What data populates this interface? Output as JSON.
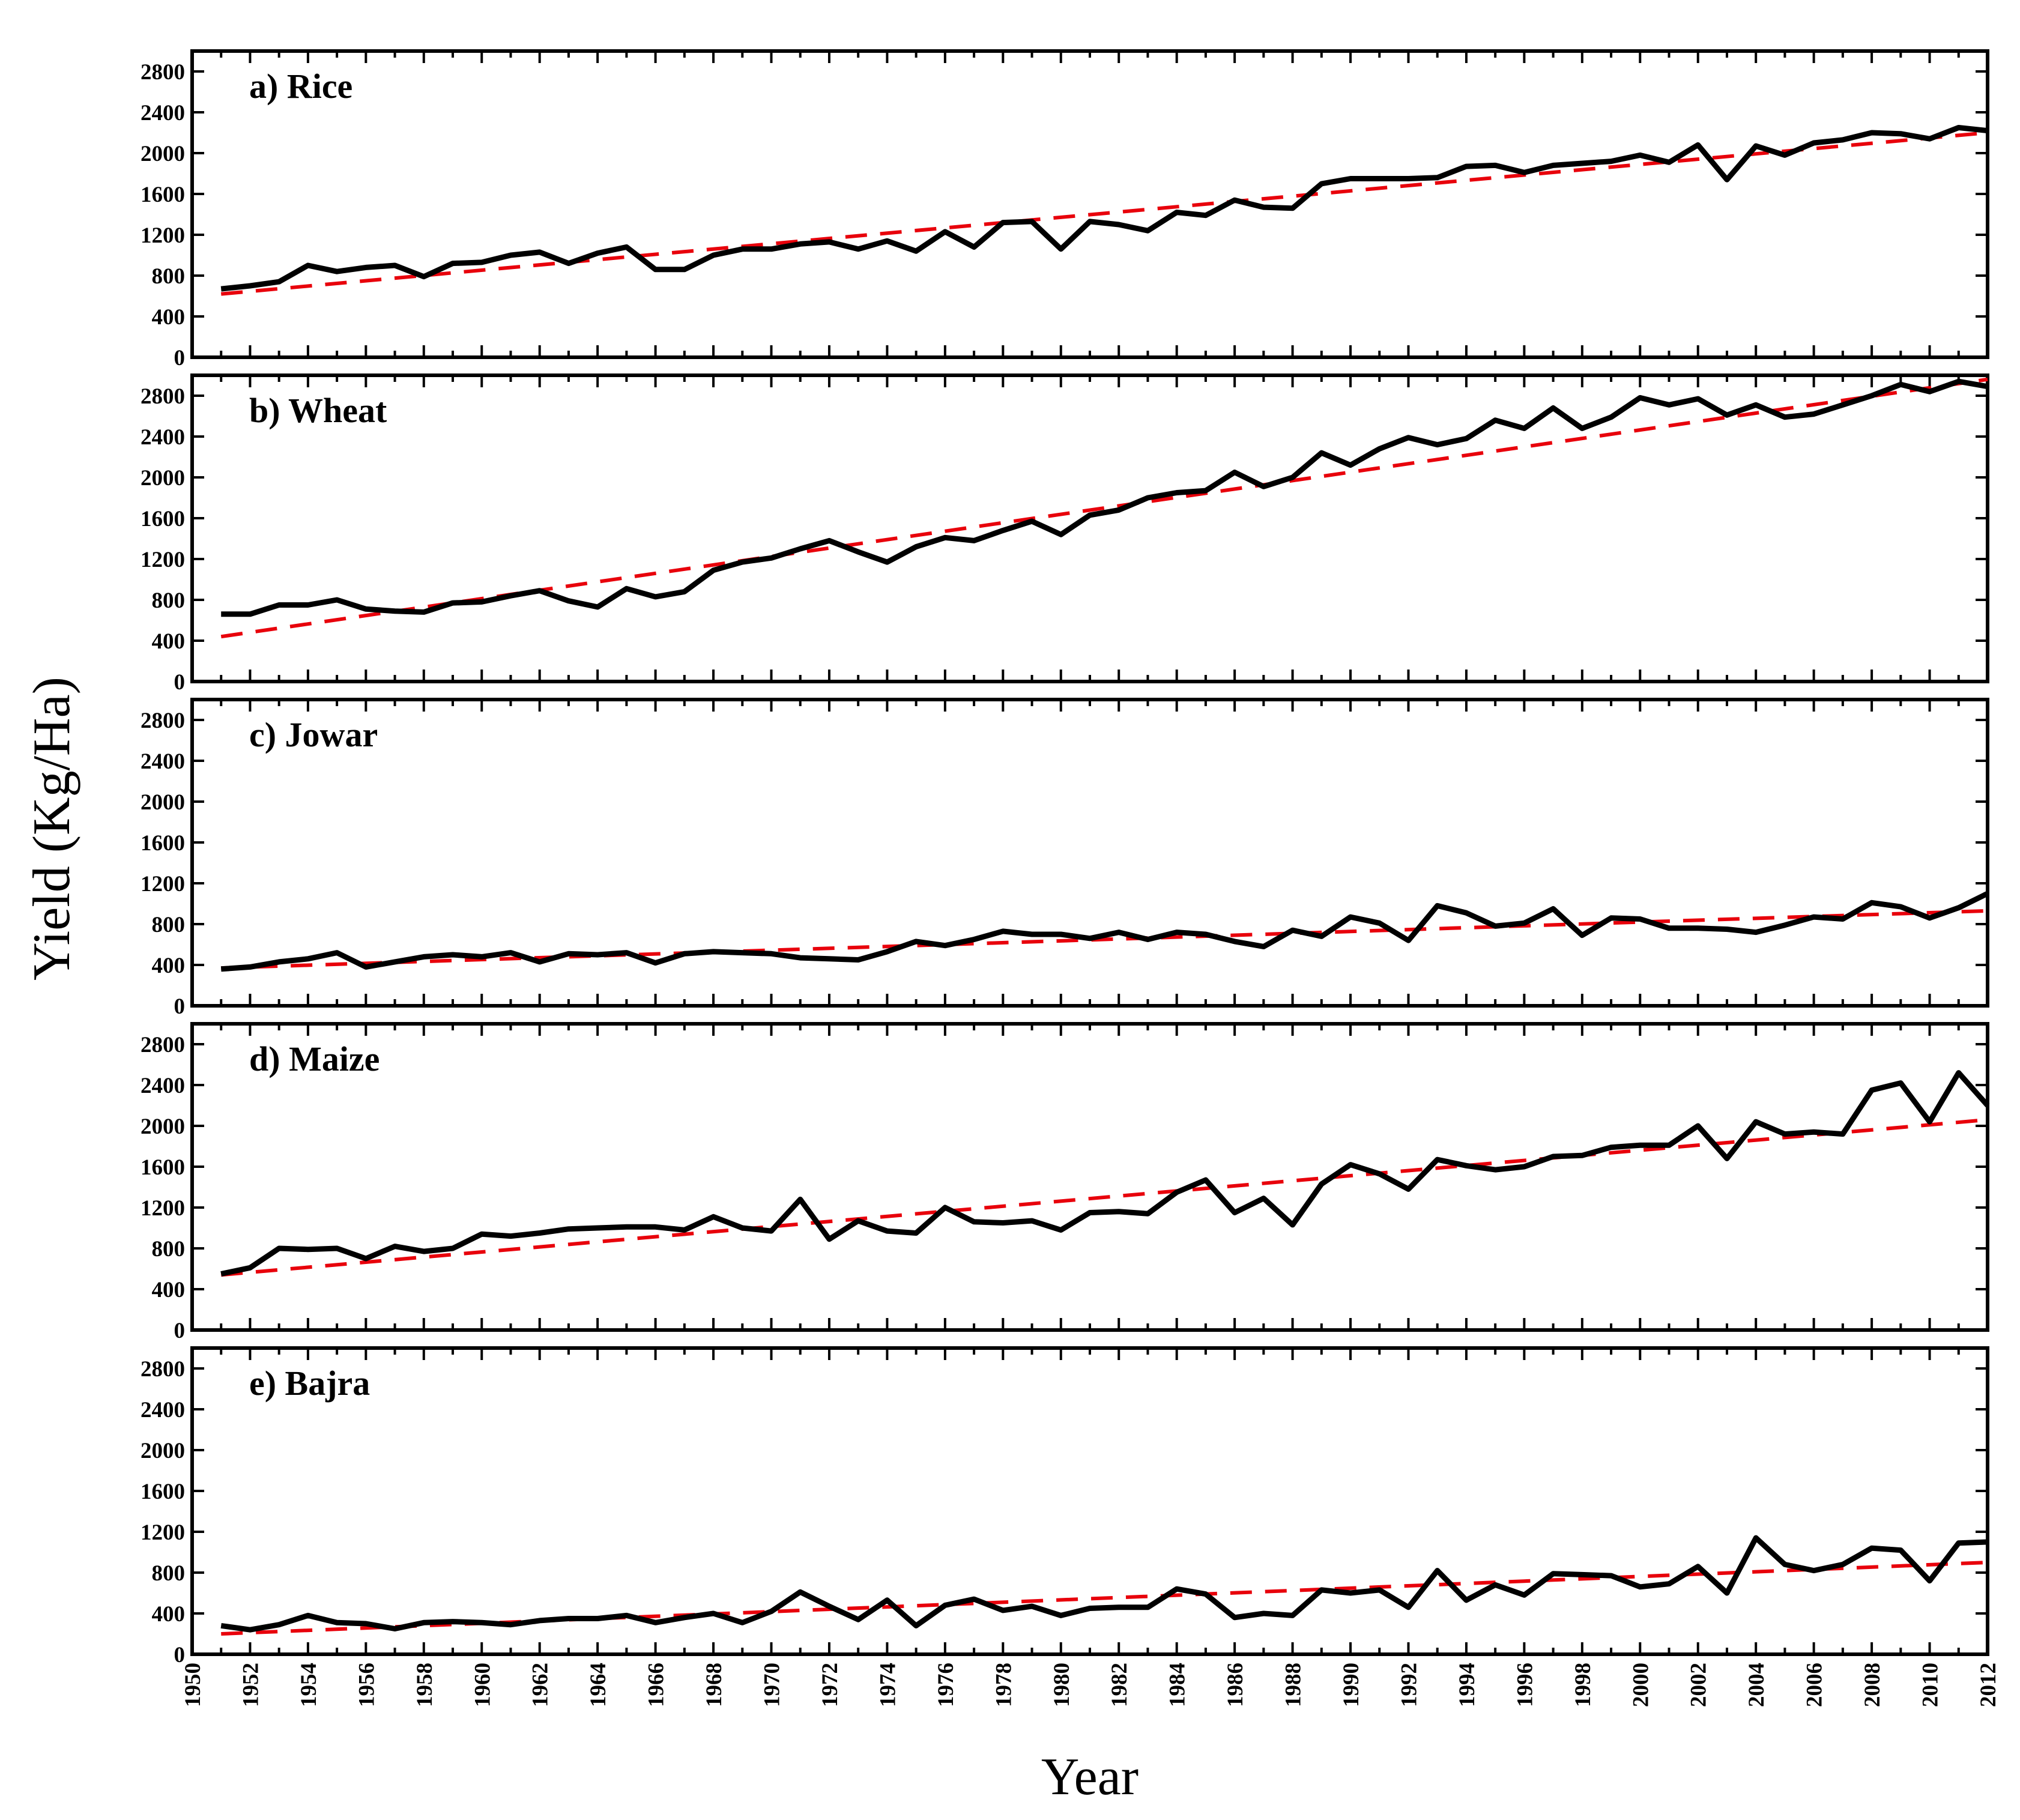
{
  "chart_data": {
    "type": "line",
    "ylabel": "Yield (Kg/Ha)",
    "xlabel": "Year",
    "xlim": [
      1950,
      2012
    ],
    "ylim": [
      0,
      3000
    ],
    "x_ticks": [
      1950,
      1952,
      1954,
      1956,
      1958,
      1960,
      1962,
      1964,
      1966,
      1968,
      1970,
      1972,
      1974,
      1976,
      1978,
      1980,
      1982,
      1984,
      1986,
      1988,
      1990,
      1992,
      1994,
      1996,
      1998,
      2000,
      2002,
      2004,
      2006,
      2008,
      2010,
      2012
    ],
    "y_ticks": [
      0,
      400,
      800,
      1200,
      1600,
      2000,
      2400,
      2800
    ],
    "series_styles": {
      "yield": {
        "color": "#000000",
        "style": "solid"
      },
      "trend": {
        "color": "#e8000b",
        "style": "dashed"
      }
    },
    "panels": [
      {
        "title": "a) Rice",
        "x_start": 1951,
        "values": [
          670,
          700,
          740,
          900,
          840,
          880,
          900,
          790,
          920,
          930,
          1000,
          1030,
          920,
          1020,
          1080,
          860,
          860,
          1000,
          1060,
          1060,
          1110,
          1130,
          1060,
          1140,
          1040,
          1230,
          1080,
          1320,
          1330,
          1060,
          1330,
          1300,
          1240,
          1420,
          1390,
          1540,
          1470,
          1460,
          1700,
          1750,
          1750,
          1750,
          1760,
          1870,
          1880,
          1810,
          1880,
          1900,
          1920,
          1980,
          1910,
          2080,
          1740,
          2070,
          1980,
          2100,
          2130,
          2200,
          2190,
          2140,
          2250,
          2220
        ],
        "trend": [
          620,
          2200
        ]
      },
      {
        "title": "b) Wheat",
        "x_start": 1951,
        "values": [
          660,
          660,
          750,
          750,
          800,
          710,
          690,
          680,
          770,
          780,
          840,
          890,
          790,
          730,
          910,
          830,
          880,
          1090,
          1170,
          1210,
          1300,
          1380,
          1270,
          1170,
          1320,
          1410,
          1380,
          1480,
          1570,
          1440,
          1630,
          1680,
          1800,
          1850,
          1870,
          2050,
          1910,
          2000,
          2240,
          2120,
          2280,
          2390,
          2320,
          2380,
          2560,
          2480,
          2680,
          2480,
          2590,
          2780,
          2710,
          2770,
          2610,
          2710,
          2590,
          2620,
          2710,
          2800,
          2910,
          2840,
          2940,
          2890
        ],
        "trend": [
          440,
          2960
        ]
      },
      {
        "title": "c) Jowar",
        "x_start": 1951,
        "values": [
          360,
          380,
          430,
          460,
          520,
          380,
          430,
          480,
          500,
          480,
          520,
          430,
          510,
          500,
          520,
          420,
          510,
          530,
          520,
          510,
          470,
          460,
          450,
          530,
          630,
          590,
          650,
          730,
          700,
          700,
          660,
          720,
          650,
          720,
          700,
          630,
          580,
          740,
          680,
          870,
          810,
          640,
          980,
          910,
          780,
          810,
          950,
          690,
          860,
          850,
          760,
          760,
          750,
          720,
          790,
          870,
          850,
          1010,
          970,
          860,
          960,
          1100
        ],
        "trend": [
          370,
          930
        ]
      },
      {
        "title": "d) Maize",
        "x_start": 1951,
        "values": [
          550,
          610,
          800,
          790,
          800,
          700,
          820,
          770,
          800,
          940,
          920,
          950,
          990,
          1000,
          1010,
          1010,
          980,
          1110,
          1000,
          970,
          1280,
          890,
          1070,
          970,
          950,
          1200,
          1060,
          1050,
          1070,
          980,
          1150,
          1160,
          1140,
          1350,
          1470,
          1150,
          1290,
          1030,
          1430,
          1620,
          1530,
          1380,
          1670,
          1610,
          1570,
          1600,
          1700,
          1710,
          1790,
          1810,
          1810,
          2000,
          1680,
          2040,
          1920,
          1940,
          1920,
          2350,
          2420,
          2040,
          2520,
          2200
        ],
        "trend": [
          540,
          2060
        ]
      },
      {
        "title": "e) Bajra",
        "x_start": 1951,
        "values": [
          280,
          240,
          290,
          380,
          310,
          300,
          250,
          310,
          320,
          310,
          290,
          330,
          350,
          350,
          380,
          310,
          360,
          400,
          310,
          420,
          610,
          470,
          340,
          530,
          280,
          480,
          540,
          430,
          470,
          380,
          450,
          460,
          460,
          640,
          590,
          360,
          400,
          380,
          630,
          600,
          630,
          460,
          820,
          530,
          680,
          580,
          790,
          780,
          770,
          660,
          690,
          860,
          600,
          1140,
          880,
          820,
          880,
          1040,
          1020,
          720,
          1090,
          1100
        ],
        "trend": [
          200,
          900
        ]
      }
    ]
  }
}
